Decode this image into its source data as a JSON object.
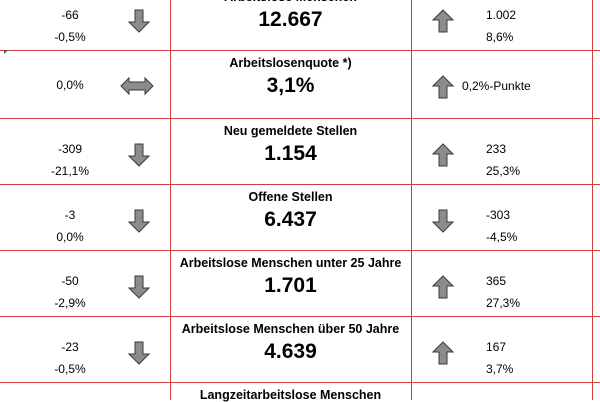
{
  "rows": [
    {
      "title": "Arbeitslose Menschen",
      "value": "12.667",
      "left_abs": "-66",
      "left_pct": "-0,5%",
      "left_arrow": "down",
      "right_abs": "1.002",
      "right_pct": "8,6%",
      "right_arrow": "up"
    },
    {
      "title": "Arbeitslosenquote *)",
      "value": "3,1%",
      "left_abs": "0,0%",
      "left_pct": "",
      "left_arrow": "both",
      "right_abs": "0,2%-Punkte",
      "right_pct": "",
      "right_arrow": "up"
    },
    {
      "title": "Neu gemeldete Stellen",
      "value": "1.154",
      "left_abs": "-309",
      "left_pct": "-21,1%",
      "left_arrow": "down",
      "right_abs": "233",
      "right_pct": "25,3%",
      "right_arrow": "up"
    },
    {
      "title": "Offene Stellen",
      "value": "6.437",
      "left_abs": "-3",
      "left_pct": "0,0%",
      "left_arrow": "down",
      "right_abs": "-303",
      "right_pct": "-4,5%",
      "right_arrow": "down"
    },
    {
      "title": "Arbeitslose Menschen unter 25 Jahre",
      "value": "1.701",
      "left_abs": "-50",
      "left_pct": "-2,9%",
      "left_arrow": "down",
      "right_abs": "365",
      "right_pct": "27,3%",
      "right_arrow": "up"
    },
    {
      "title": "Arbeitslose Menschen über 50 Jahre",
      "value": "4.639",
      "left_abs": "-23",
      "left_pct": "-0,5%",
      "left_arrow": "down",
      "right_abs": "167",
      "right_pct": "3,7%",
      "right_arrow": "up"
    },
    {
      "title": "Langzeitarbeitslose Menschen",
      "value": "",
      "left_abs": "",
      "left_pct": "",
      "left_arrow": "",
      "right_abs": "",
      "right_pct": "",
      "right_arrow": ""
    }
  ],
  "colors": {
    "grid": "#d23a3a",
    "arrow_fill": "#8c8c8c",
    "arrow_stroke": "#3a3a3a"
  }
}
